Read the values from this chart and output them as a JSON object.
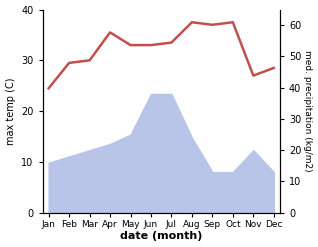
{
  "months": [
    "Jan",
    "Feb",
    "Mar",
    "Apr",
    "May",
    "Jun",
    "Jul",
    "Aug",
    "Sep",
    "Oct",
    "Nov",
    "Dec"
  ],
  "temperature": [
    24.5,
    29.5,
    30.0,
    35.5,
    33.0,
    33.0,
    33.5,
    37.5,
    37.0,
    37.5,
    27.0,
    28.5
  ],
  "precipitation": [
    16,
    18,
    20,
    22,
    25,
    38,
    38,
    24,
    13,
    13,
    20,
    13
  ],
  "temp_color": "#c0504d",
  "precip_fill_color": "#b8c4e8",
  "temp_ylim": [
    0,
    40
  ],
  "precip_ylim": [
    0,
    65
  ],
  "xlabel": "date (month)",
  "ylabel_left": "max temp (C)",
  "ylabel_right": "med. precipitation (kg/m2)",
  "temp_yticks": [
    0,
    10,
    20,
    30,
    40
  ],
  "precip_yticks": [
    0,
    10,
    20,
    30,
    40,
    50,
    60
  ],
  "figsize": [
    3.18,
    2.47
  ],
  "dpi": 100
}
